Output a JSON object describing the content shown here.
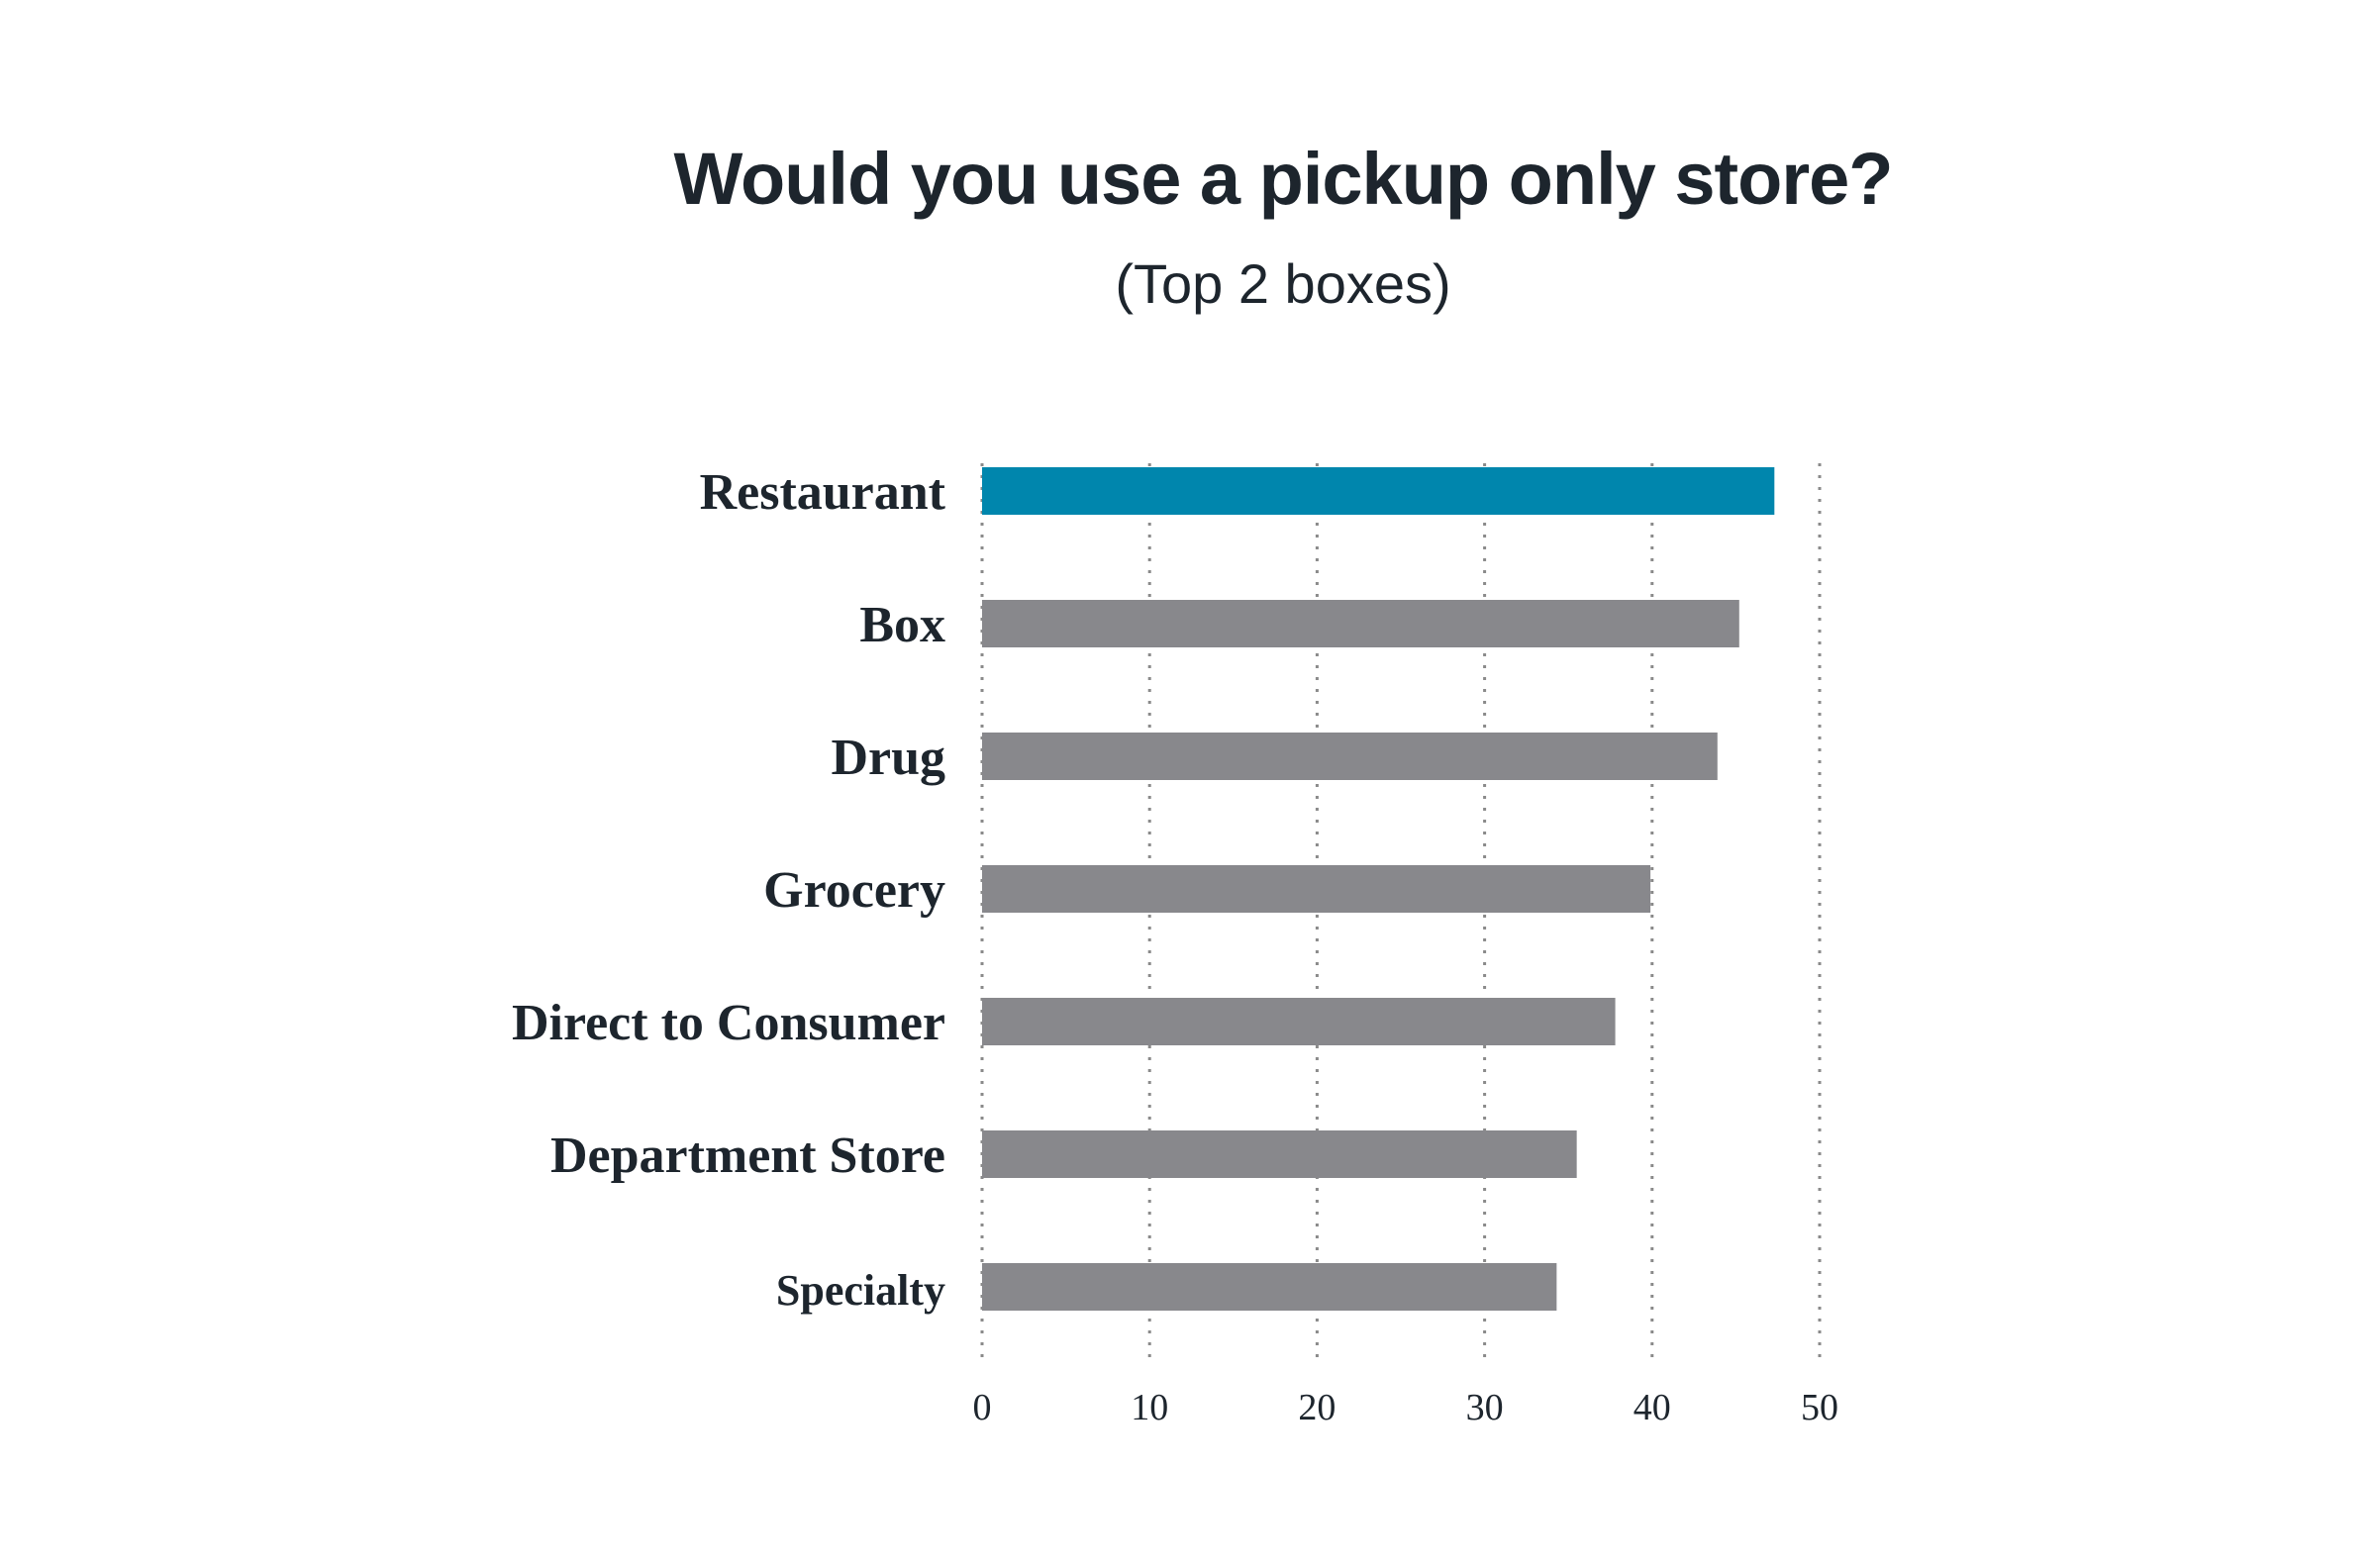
{
  "chart_data": {
    "type": "bar",
    "orientation": "horizontal",
    "title": "Would you use a pickup only store?",
    "subtitle": "(Top 2 boxes)",
    "categories": [
      "Restaurant",
      "Box",
      "Drug",
      "Grocery",
      "Direct to Consumer",
      "Department Store",
      "Specialty"
    ],
    "values": [
      47.3,
      45.2,
      43.9,
      39.9,
      37.8,
      35.5,
      34.3
    ],
    "xlim": [
      0,
      50
    ],
    "xticks": [
      "0",
      "10",
      "20",
      "30",
      "40",
      "50"
    ],
    "grid": true,
    "highlight_category": "Restaurant",
    "colors": {
      "highlight": "#0086ad",
      "default": "#88888c",
      "grid": "#8a8a8a",
      "text": "#1d252d"
    }
  }
}
